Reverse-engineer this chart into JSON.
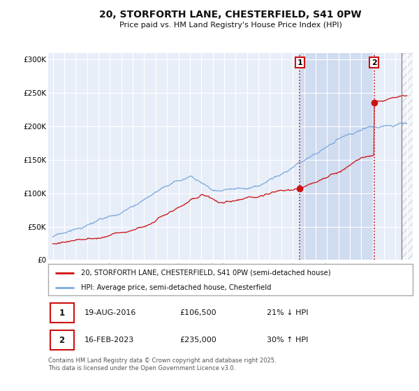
{
  "title_line1": "20, STORFORTH LANE, CHESTERFIELD, S41 0PW",
  "title_line2": "Price paid vs. HM Land Registry's House Price Index (HPI)",
  "background_color": "#ffffff",
  "plot_bg_color": "#e8eef8",
  "plot_bg_color_shaded": "#d0dcf0",
  "grid_color": "#ffffff",
  "hpi_color": "#7aaadd",
  "price_color": "#cc1111",
  "vline_color": "#cc1111",
  "ylim_min": 0,
  "ylim_max": 310000,
  "yticks": [
    0,
    50000,
    100000,
    150000,
    200000,
    250000,
    300000
  ],
  "ytick_labels": [
    "£0",
    "£50K",
    "£100K",
    "£150K",
    "£200K",
    "£250K",
    "£300K"
  ],
  "xmin": 1995,
  "xmax": 2026,
  "transaction1_date": 2016.63,
  "transaction1_price": 106500,
  "transaction2_date": 2023.12,
  "transaction2_price": 235000,
  "legend_red_label": "20, STORFORTH LANE, CHESTERFIELD, S41 0PW (semi-detached house)",
  "legend_blue_label": "HPI: Average price, semi-detached house, Chesterfield",
  "annotation1_date": "19-AUG-2016",
  "annotation1_price": "£106,500",
  "annotation1_pct": "21% ↓ HPI",
  "annotation2_date": "16-FEB-2023",
  "annotation2_price": "£235,000",
  "annotation2_pct": "30% ↑ HPI",
  "footer": "Contains HM Land Registry data © Crown copyright and database right 2025.\nThis data is licensed under the Open Government Licence v3.0."
}
